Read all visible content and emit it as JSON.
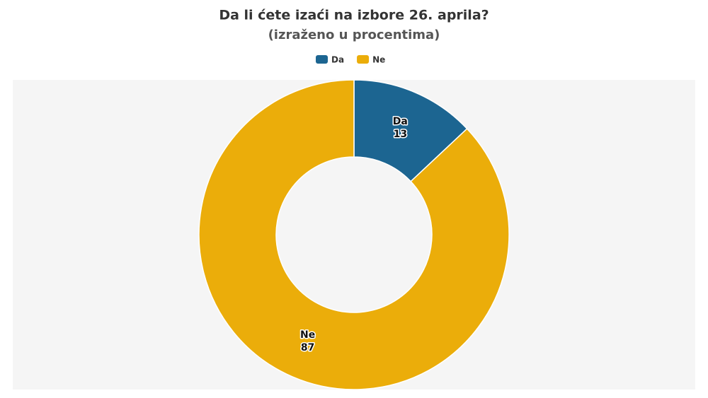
{
  "chart_data": {
    "type": "donut",
    "title": "Da li ćete izaći na izbore 26. aprila?",
    "subtitle": "(izraženo u procentima)",
    "categories": [
      "Da",
      "Ne"
    ],
    "values": [
      13,
      87
    ],
    "colors": [
      "#1c6591",
      "#ebad0a"
    ],
    "legend": "top"
  }
}
